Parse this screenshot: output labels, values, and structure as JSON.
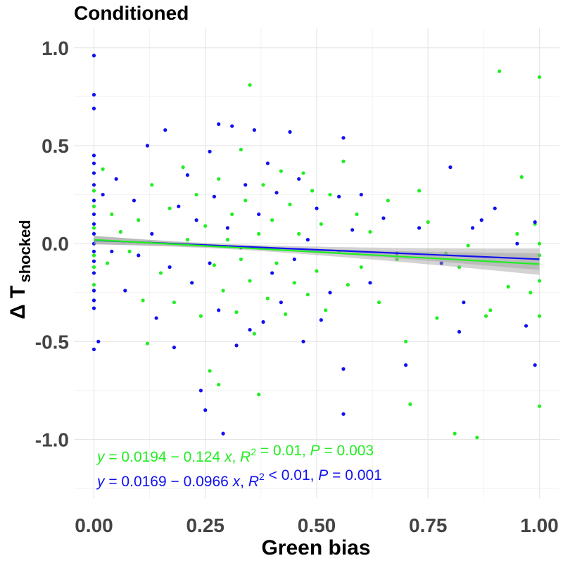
{
  "chart_data": {
    "type": "scatter",
    "title": "Conditioned",
    "xlabel": "Green bias",
    "ylabel_main": "Δ T",
    "ylabel_sub": "shocked",
    "xlim": [
      -0.045,
      1.045
    ],
    "ylim": [
      -1.3,
      1.1
    ],
    "x_ticks": [
      {
        "value": 0.0,
        "label": "0.00"
      },
      {
        "value": 0.25,
        "label": "0.25"
      },
      {
        "value": 0.5,
        "label": "0.50"
      },
      {
        "value": 0.75,
        "label": "0.75"
      },
      {
        "value": 1.0,
        "label": "1.00"
      }
    ],
    "y_ticks": [
      {
        "value": 1.0,
        "label": "1.0"
      },
      {
        "value": 0.5,
        "label": "0.5"
      },
      {
        "value": 0.0,
        "label": "0.0"
      },
      {
        "value": -0.5,
        "label": "-0.5"
      },
      {
        "value": -1.0,
        "label": "-1.0"
      }
    ],
    "grid": true,
    "series": [
      {
        "color": "#22ee22",
        "fit": {
          "intercept": 0.0194,
          "slope": -0.124
        },
        "equation": {
          "intercept": "0.0194",
          "slope": "0.124",
          "r2_op": "=",
          "r2": "0.01",
          "p": "0.003"
        },
        "points": [
          [
            0.0,
            0.27
          ],
          [
            0.0,
            0.19
          ],
          [
            0.0,
            0.08
          ],
          [
            0.0,
            -0.06
          ],
          [
            0.0,
            -0.12
          ],
          [
            0.0,
            -0.21
          ],
          [
            0.02,
            0.38
          ],
          [
            0.03,
            -0.1
          ],
          [
            0.04,
            0.15
          ],
          [
            0.06,
            0.06
          ],
          [
            0.08,
            -0.04
          ],
          [
            0.1,
            0.12
          ],
          [
            0.11,
            -0.29
          ],
          [
            0.12,
            -0.51
          ],
          [
            0.13,
            0.3
          ],
          [
            0.15,
            -0.15
          ],
          [
            0.17,
            0.18
          ],
          [
            0.18,
            -0.3
          ],
          [
            0.2,
            0.39
          ],
          [
            0.21,
            0.02
          ],
          [
            0.22,
            -0.2
          ],
          [
            0.23,
            0.25
          ],
          [
            0.24,
            -0.37
          ],
          [
            0.25,
            0.09
          ],
          [
            0.26,
            -0.65
          ],
          [
            0.27,
            -0.11
          ],
          [
            0.28,
            0.33
          ],
          [
            0.28,
            -0.72
          ],
          [
            0.29,
            -0.24
          ],
          [
            0.3,
            0.02
          ],
          [
            0.31,
            0.15
          ],
          [
            0.32,
            -0.35
          ],
          [
            0.33,
            0.48
          ],
          [
            0.33,
            -0.08
          ],
          [
            0.34,
            0.22
          ],
          [
            0.35,
            0.81
          ],
          [
            0.35,
            -0.19
          ],
          [
            0.36,
            -0.46
          ],
          [
            0.37,
            0.05
          ],
          [
            0.37,
            -0.77
          ],
          [
            0.38,
            0.3
          ],
          [
            0.39,
            -0.28
          ],
          [
            0.4,
            0.12
          ],
          [
            0.41,
            -0.1
          ],
          [
            0.42,
            0.37
          ],
          [
            0.43,
            -0.36
          ],
          [
            0.44,
            0.2
          ],
          [
            0.45,
            -0.2
          ],
          [
            0.46,
            0.05
          ],
          [
            0.47,
            0.36
          ],
          [
            0.48,
            -0.26
          ],
          [
            0.49,
            0.27
          ],
          [
            0.5,
            -0.14
          ],
          [
            0.51,
            0.1
          ],
          [
            0.52,
            -0.34
          ],
          [
            0.53,
            0.25
          ],
          [
            0.55,
            -0.04
          ],
          [
            0.56,
            0.42
          ],
          [
            0.57,
            -0.21
          ],
          [
            0.59,
            0.15
          ],
          [
            0.6,
            -0.12
          ],
          [
            0.62,
            0.06
          ],
          [
            0.64,
            -0.3
          ],
          [
            0.66,
            0.22
          ],
          [
            0.68,
            -0.08
          ],
          [
            0.7,
            -0.5
          ],
          [
            0.71,
            -0.82
          ],
          [
            0.73,
            0.27
          ],
          [
            0.75,
            0.11
          ],
          [
            0.77,
            -0.38
          ],
          [
            0.79,
            -0.05
          ],
          [
            0.81,
            -0.97
          ],
          [
            0.82,
            -0.12
          ],
          [
            0.84,
            -0.01
          ],
          [
            0.86,
            -0.99
          ],
          [
            0.88,
            -0.37
          ],
          [
            0.89,
            -0.34
          ],
          [
            0.91,
            0.88
          ],
          [
            0.93,
            -0.22
          ],
          [
            0.95,
            0.05
          ],
          [
            0.96,
            0.34
          ],
          [
            0.98,
            -0.25
          ],
          [
            0.99,
            0.1
          ],
          [
            1.0,
            0.85
          ],
          [
            1.0,
            0.0
          ],
          [
            1.0,
            -0.19
          ],
          [
            1.0,
            -0.37
          ],
          [
            1.0,
            -0.83
          ],
          [
            1.0,
            -0.06
          ]
        ]
      },
      {
        "color": "#1111ee",
        "fit": {
          "intercept": 0.0169,
          "slope": -0.0966
        },
        "equation": {
          "intercept": "0.0169",
          "slope": "0.0966",
          "r2_op": "<",
          "r2": "0.01",
          "p": "0.001"
        },
        "points": [
          [
            0.0,
            0.96
          ],
          [
            0.0,
            0.76
          ],
          [
            0.0,
            0.69
          ],
          [
            0.0,
            0.45
          ],
          [
            0.0,
            0.41
          ],
          [
            0.0,
            0.36
          ],
          [
            0.0,
            0.3
          ],
          [
            0.0,
            0.22
          ],
          [
            0.0,
            0.15
          ],
          [
            0.0,
            0.1
          ],
          [
            0.0,
            0.05
          ],
          [
            0.0,
            0.0
          ],
          [
            0.0,
            -0.04
          ],
          [
            0.0,
            -0.09
          ],
          [
            0.0,
            -0.15
          ],
          [
            0.0,
            -0.24
          ],
          [
            0.0,
            -0.29
          ],
          [
            0.0,
            -0.33
          ],
          [
            0.0,
            -0.54
          ],
          [
            0.01,
            -0.5
          ],
          [
            0.02,
            0.25
          ],
          [
            0.04,
            -0.04
          ],
          [
            0.05,
            0.33
          ],
          [
            0.07,
            -0.24
          ],
          [
            0.09,
            0.22
          ],
          [
            0.1,
            -0.06
          ],
          [
            0.12,
            0.5
          ],
          [
            0.13,
            0.05
          ],
          [
            0.14,
            -0.38
          ],
          [
            0.16,
            0.58
          ],
          [
            0.17,
            -0.12
          ],
          [
            0.18,
            -0.53
          ],
          [
            0.19,
            0.19
          ],
          [
            0.21,
            0.35
          ],
          [
            0.22,
            -0.2
          ],
          [
            0.23,
            0.12
          ],
          [
            0.24,
            -0.75
          ],
          [
            0.25,
            -0.85
          ],
          [
            0.26,
            0.47
          ],
          [
            0.26,
            -0.1
          ],
          [
            0.27,
            0.24
          ],
          [
            0.28,
            -0.34
          ],
          [
            0.28,
            0.61
          ],
          [
            0.29,
            -0.97
          ],
          [
            0.3,
            0.08
          ],
          [
            0.31,
            0.6
          ],
          [
            0.32,
            -0.52
          ],
          [
            0.33,
            -0.02
          ],
          [
            0.34,
            0.3
          ],
          [
            0.35,
            -0.44
          ],
          [
            0.36,
            0.58
          ],
          [
            0.37,
            0.15
          ],
          [
            0.38,
            -0.4
          ],
          [
            0.39,
            0.41
          ],
          [
            0.4,
            -0.15
          ],
          [
            0.41,
            0.26
          ],
          [
            0.42,
            -0.3
          ],
          [
            0.44,
            0.57
          ],
          [
            0.45,
            -0.08
          ],
          [
            0.46,
            0.33
          ],
          [
            0.47,
            -0.5
          ],
          [
            0.48,
            0.02
          ],
          [
            0.5,
            0.18
          ],
          [
            0.51,
            -0.39
          ],
          [
            0.53,
            -0.25
          ],
          [
            0.55,
            0.24
          ],
          [
            0.56,
            0.54
          ],
          [
            0.56,
            -0.64
          ],
          [
            0.56,
            -0.87
          ],
          [
            0.58,
            0.07
          ],
          [
            0.6,
            0.25
          ],
          [
            0.62,
            -0.2
          ],
          [
            0.65,
            0.13
          ],
          [
            0.68,
            -0.05
          ],
          [
            0.7,
            -0.62
          ],
          [
            0.73,
            0.08
          ],
          [
            0.78,
            -0.1
          ],
          [
            0.8,
            0.39
          ],
          [
            0.82,
            -0.45
          ],
          [
            0.83,
            -0.3
          ],
          [
            0.85,
            0.08
          ],
          [
            0.87,
            0.12
          ],
          [
            0.9,
            0.18
          ],
          [
            0.95,
            0.0
          ],
          [
            0.97,
            -0.42
          ],
          [
            0.99,
            0.11
          ],
          [
            0.99,
            -0.62
          ]
        ]
      }
    ]
  }
}
